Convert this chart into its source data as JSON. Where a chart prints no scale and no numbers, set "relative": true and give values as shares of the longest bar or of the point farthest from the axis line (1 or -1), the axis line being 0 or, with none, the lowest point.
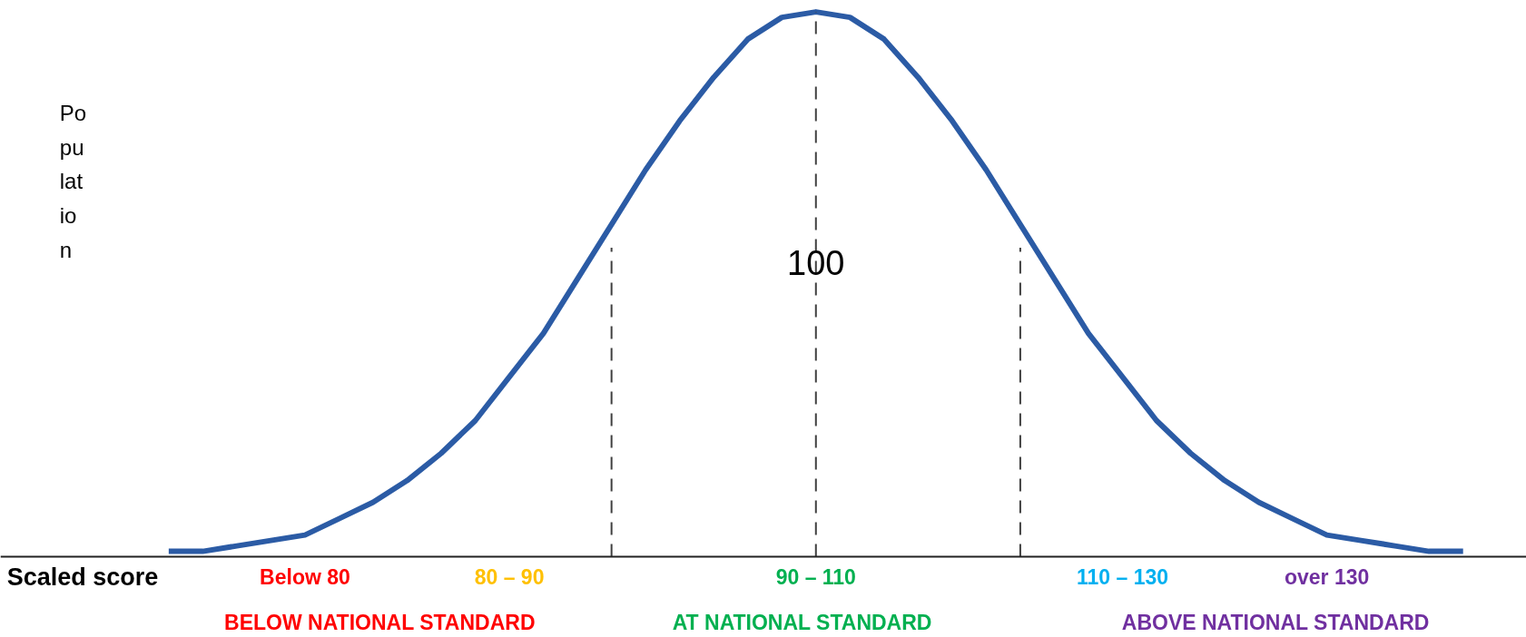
{
  "chart_data": {
    "type": "line",
    "relative": true,
    "ylabel": "Population",
    "categories": [
      null,
      null,
      null,
      null,
      null,
      null,
      null,
      null,
      null,
      null,
      null,
      null,
      null,
      null,
      null,
      null,
      null,
      null,
      null,
      null,
      null,
      null,
      null,
      null,
      null,
      null,
      null,
      null,
      null,
      null,
      null,
      null,
      null,
      null,
      null,
      null,
      null,
      null,
      null
    ],
    "series": [
      {
        "color": "#2b5ba5",
        "values": [
          0.01,
          0.01,
          0.02,
          0.03,
          0.04,
          0.07,
          0.1,
          0.14,
          0.19,
          0.25,
          0.33,
          0.41,
          0.51,
          0.61,
          0.71,
          0.8,
          0.88,
          0.95,
          0.99,
          1,
          0.99,
          0.95,
          0.88,
          0.8,
          0.71,
          0.61,
          0.51,
          0.41,
          0.33,
          0.25,
          0.19,
          0.14,
          0.1,
          0.07,
          0.04,
          0.03,
          0.02,
          0.01,
          0.01
        ]
      }
    ],
    "annotations": [
      "100",
      "Scaled score",
      "Below 80",
      "80 – 90",
      "90 – 110",
      "110 – 130",
      "over 130",
      "BELOW NATIONAL STANDARD",
      "AT NATIONAL STANDARD",
      "ABOVE NATIONAL STANDARD"
    ],
    "grid": false,
    "marker": "none",
    "line_style": "solid"
  }
}
